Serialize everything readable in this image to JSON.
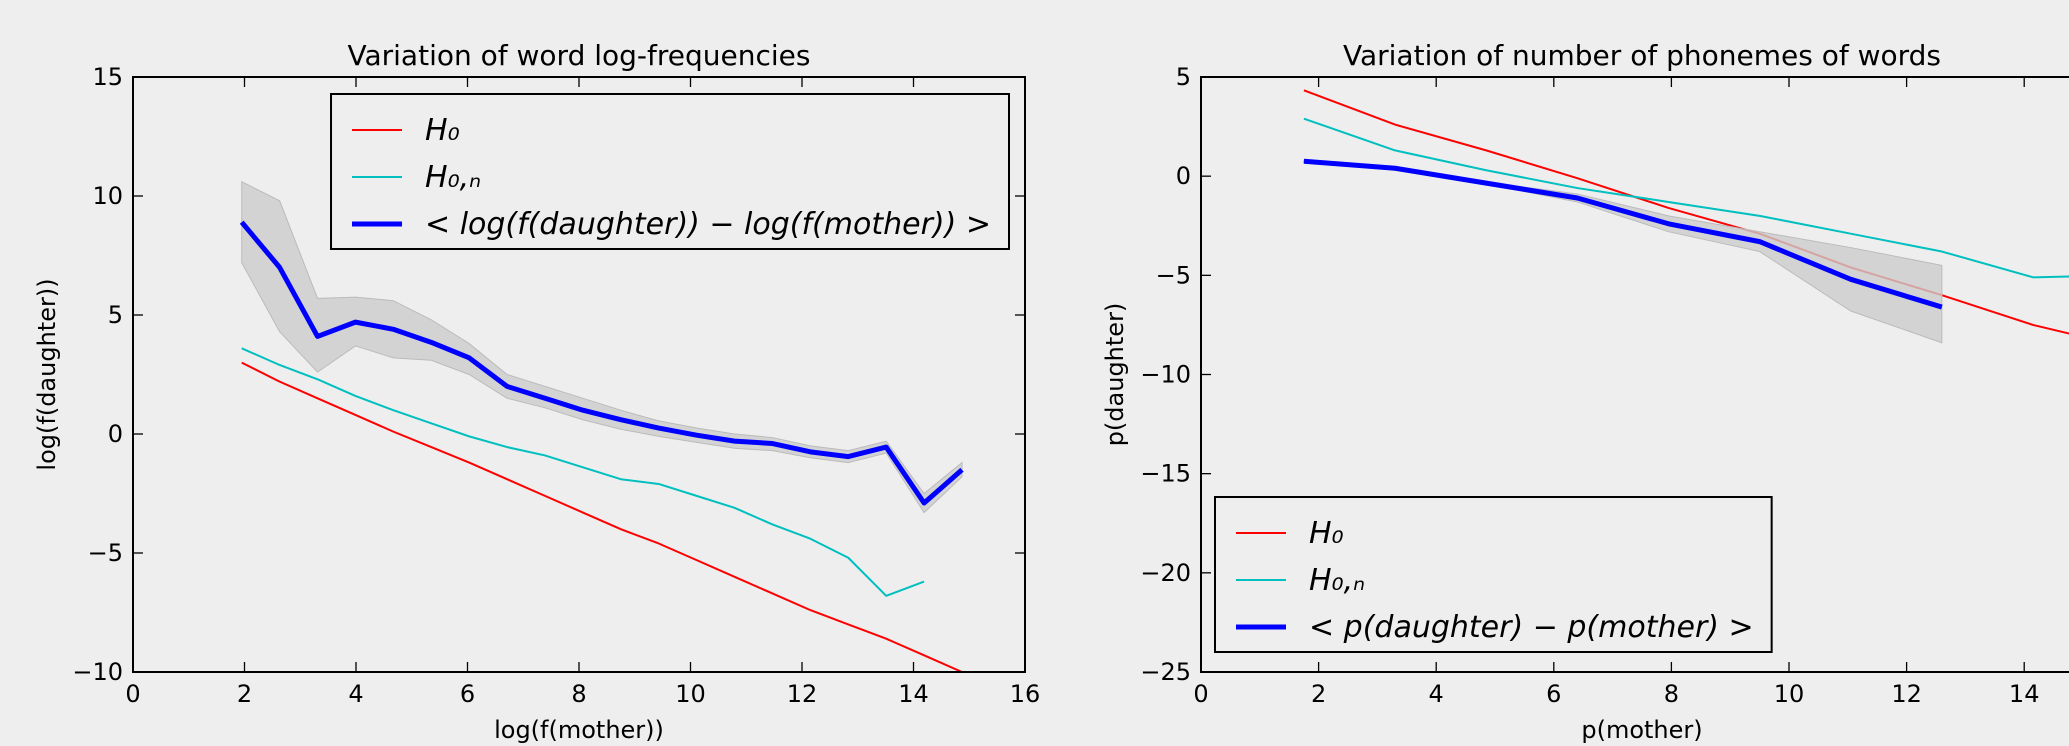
{
  "chart_data": [
    {
      "type": "line",
      "title": "Variation of word log-frequencies",
      "x_label": "log(f(mother))",
      "y_label": "log(f(daughter))",
      "legend": "upper right",
      "x": [
        1.95,
        2.63,
        3.31,
        3.99,
        4.67,
        5.35,
        6.03,
        6.71,
        7.39,
        8.07,
        8.75,
        9.43,
        10.11,
        10.79,
        11.47,
        12.15,
        12.83,
        13.51,
        14.19,
        14.87
      ],
      "series": [
        {
          "name": "H₀",
          "color": "#ff0000",
          "width": 2,
          "values": [
            3.0,
            2.2,
            1.5,
            0.8,
            0.1,
            -0.55,
            -1.2,
            -1.9,
            -2.6,
            -3.3,
            -4.0,
            -4.6,
            -5.3,
            -6.0,
            -6.7,
            -7.4,
            -8.0,
            -8.6,
            -9.3,
            -10.0
          ]
        },
        {
          "name": "H₀,ₙ",
          "color": "#00bfbf",
          "width": 2,
          "values": [
            3.6,
            2.9,
            2.3,
            1.6,
            1.0,
            0.45,
            -0.1,
            -0.55,
            -0.9,
            -1.4,
            -1.9,
            -2.1,
            -2.6,
            -3.1,
            -3.8,
            -4.4,
            -5.2,
            -6.8,
            -6.2,
            null
          ]
        },
        {
          "name": "< log(f(daughter)) − log(f(mother)) >",
          "color": "#0000ff",
          "width": 5,
          "band_color": "#cccccc",
          "values": [
            8.9,
            7.0,
            4.1,
            4.7,
            4.4,
            3.85,
            3.2,
            2.0,
            1.5,
            1.0,
            0.6,
            0.25,
            -0.05,
            -0.3,
            -0.4,
            -0.75,
            -0.95,
            -0.55,
            -2.9,
            -1.5
          ],
          "band_upper": [
            10.6,
            9.8,
            5.7,
            5.75,
            5.6,
            4.8,
            3.8,
            2.5,
            2.0,
            1.5,
            1.0,
            0.55,
            0.25,
            0.0,
            -0.15,
            -0.5,
            -0.7,
            -0.3,
            -2.5,
            -1.2
          ],
          "band_lower": [
            7.2,
            4.3,
            2.6,
            3.7,
            3.2,
            3.1,
            2.5,
            1.5,
            1.1,
            0.6,
            0.2,
            -0.1,
            -0.35,
            -0.6,
            -0.7,
            -1.0,
            -1.2,
            -0.8,
            -3.3,
            -1.8
          ]
        }
      ],
      "xlim": [
        0,
        16
      ],
      "xticks": [
        0,
        2,
        4,
        6,
        8,
        10,
        12,
        14,
        16
      ],
      "ylim": [
        -10,
        15
      ],
      "yticks": [
        {
          "value": -10,
          "label": "−10"
        },
        {
          "value": -5,
          "label": "−5"
        },
        0,
        5,
        10,
        15
      ]
    },
    {
      "type": "line",
      "title": "Variation of number of phonemes of words",
      "x_label": "p(mother)",
      "y_label": "p(daughter)",
      "legend": "lower left",
      "x": [
        1.75,
        3.3,
        4.85,
        6.4,
        7.95,
        9.5,
        11.05,
        12.6,
        14.15,
        15.7
      ],
      "series": [
        {
          "name": "H₀",
          "color": "#ff0000",
          "width": 2,
          "values": [
            4.33,
            2.6,
            1.3,
            -0.1,
            -1.6,
            -2.9,
            -4.6,
            -6.0,
            -7.5,
            -8.6
          ]
        },
        {
          "name": "H₀,ₙ",
          "color": "#00bfbf",
          "width": 2,
          "values": [
            2.9,
            1.3,
            0.3,
            -0.6,
            -1.3,
            -2.0,
            -2.9,
            -3.8,
            -5.1,
            -5.0
          ]
        },
        {
          "name": "< p(daughter) − p(mother) >",
          "color": "#0000ff",
          "width": 5,
          "band_color": "#cccccc",
          "values": [
            0.75,
            0.4,
            -0.35,
            -1.1,
            -2.4,
            -3.3,
            -5.2,
            -6.6,
            null,
            null
          ],
          "band_upper": [
            0.8,
            0.45,
            -0.3,
            -0.9,
            -2.0,
            -2.8,
            -3.6,
            -4.5,
            null,
            null
          ],
          "band_lower": [
            0.7,
            0.35,
            -0.4,
            -1.3,
            -2.8,
            -3.8,
            -6.8,
            -8.4,
            null,
            null
          ]
        }
      ],
      "xlim": [
        0,
        15
      ],
      "xticks": [
        0,
        2,
        4,
        6,
        8,
        10,
        12,
        14
      ],
      "ylim": [
        -25,
        5
      ],
      "yticks": [
        {
          "value": -25,
          "label": "−25"
        },
        {
          "value": -20,
          "label": "−20"
        },
        {
          "value": -15,
          "label": "−15"
        },
        {
          "value": -10,
          "label": "−10"
        },
        {
          "value": -5,
          "label": "−5"
        },
        0,
        5
      ]
    }
  ]
}
